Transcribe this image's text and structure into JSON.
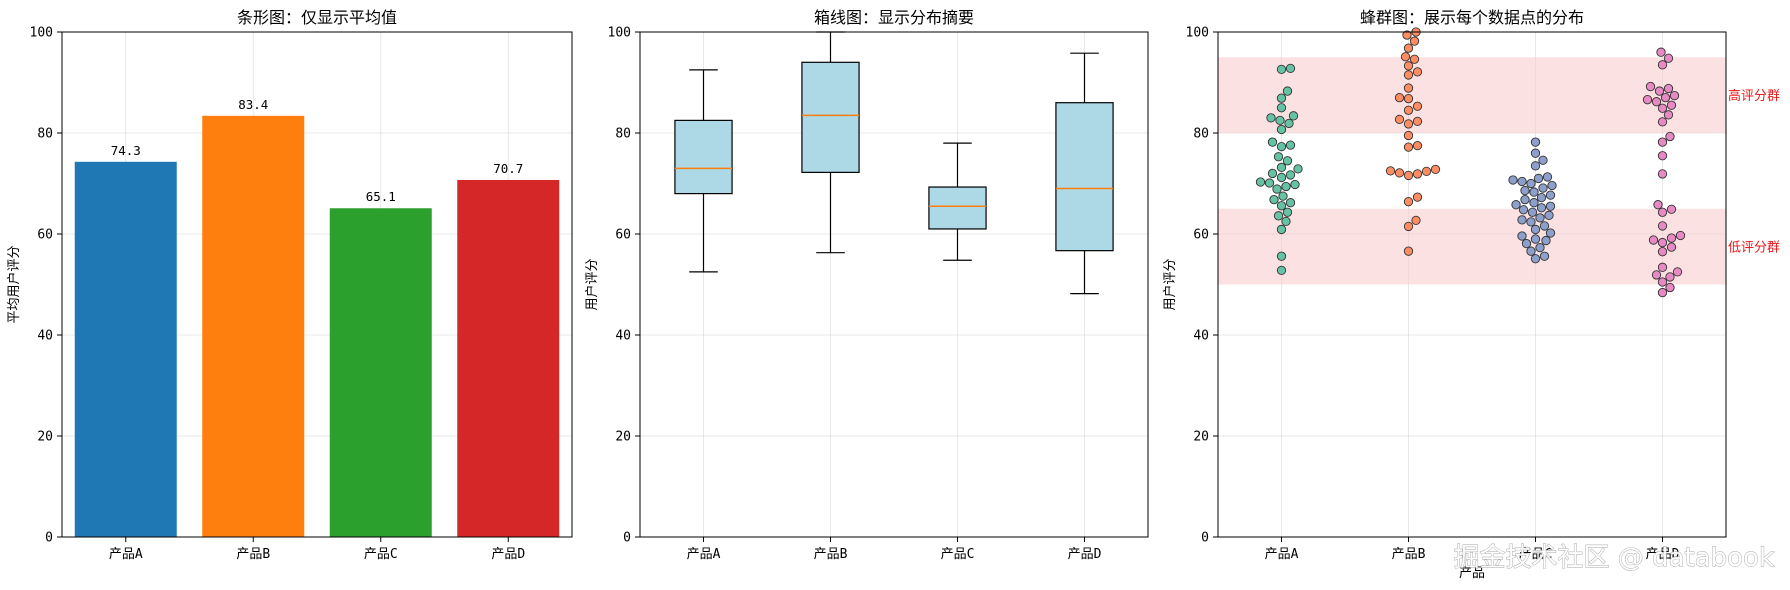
{
  "watermark": "掘金技术社区 @ databook",
  "chart_data": [
    {
      "type": "bar",
      "title": "条形图：仅显示平均值",
      "ylabel": "平均用户评分",
      "xlabel": "",
      "ylim": [
        0,
        100
      ],
      "yticks": [
        0,
        20,
        40,
        60,
        80,
        100
      ],
      "grid": true,
      "categories": [
        "产品A",
        "产品B",
        "产品C",
        "产品D"
      ],
      "values": [
        74.3,
        83.4,
        65.1,
        70.7
      ],
      "value_labels": [
        "74.3",
        "83.4",
        "65.1",
        "70.7"
      ],
      "colors": [
        "#1f77b4",
        "#ff7f0e",
        "#2ca02c",
        "#d62728"
      ]
    },
    {
      "type": "box",
      "title": "箱线图：显示分布摘要",
      "ylabel": "用户评分",
      "xlabel": "",
      "ylim": [
        0,
        100
      ],
      "yticks": [
        0,
        20,
        40,
        60,
        80,
        100
      ],
      "grid": true,
      "categories": [
        "产品A",
        "产品B",
        "产品C",
        "产品D"
      ],
      "box_color": "#add8e6",
      "median_color": "#ff7f0e",
      "boxes": [
        {
          "whisker_low": 52.5,
          "q1": 68.0,
          "median": 73.0,
          "q3": 82.5,
          "whisker_high": 92.5
        },
        {
          "whisker_low": 56.3,
          "q1": 72.2,
          "median": 83.5,
          "q3": 94.0,
          "whisker_high": 100.0
        },
        {
          "whisker_low": 54.8,
          "q1": 61.0,
          "median": 65.5,
          "q3": 69.3,
          "whisker_high": 78.0
        },
        {
          "whisker_low": 48.2,
          "q1": 56.7,
          "median": 69.0,
          "q3": 86.0,
          "whisker_high": 95.8
        }
      ]
    },
    {
      "type": "scatter",
      "subtype": "swarm",
      "title": "蜂群图：展示每个数据点的分布",
      "ylabel": "用户评分",
      "xlabel": "产品",
      "ylim": [
        0,
        100
      ],
      "yticks": [
        0,
        20,
        40,
        60,
        80,
        100
      ],
      "grid": true,
      "categories": [
        "产品A",
        "产品B",
        "产品C",
        "产品D"
      ],
      "colors": [
        "#66c2a5",
        "#fc8d62",
        "#8da0cb",
        "#e78ac3"
      ],
      "bands": [
        {
          "label": "高评分群",
          "y0": 80,
          "y1": 95,
          "color": "#f8c8c8"
        },
        {
          "label": "低评分群",
          "y0": 50,
          "y1": 65,
          "color": "#f8c8c8"
        }
      ],
      "series": [
        {
          "values": [
            92.8,
            92.6,
            88.3,
            86.9,
            85.0,
            83.4,
            83.0,
            82.5,
            81.9,
            80.7,
            78.2,
            77.6,
            77.3,
            75.3,
            74.5,
            73.2,
            72.9,
            72.0,
            71.7,
            71.2,
            70.3,
            70.1,
            69.8,
            69.4,
            68.9,
            67.5,
            66.8,
            66.2,
            65.6,
            64.3,
            63.6,
            62.5,
            60.9,
            55.6,
            52.8
          ]
        },
        {
          "values": [
            100.0,
            99.4,
            98.2,
            96.8,
            95.1,
            94.6,
            93.3,
            92.1,
            91.5,
            88.9,
            87.0,
            86.8,
            85.3,
            84.5,
            82.7,
            82.3,
            81.8,
            79.5,
            77.5,
            77.2,
            72.8,
            72.5,
            72.4,
            72.1,
            71.9,
            71.6,
            67.3,
            66.4,
            62.7,
            61.5,
            56.6
          ]
        },
        {
          "values": [
            78.2,
            76.0,
            74.6,
            73.5,
            71.3,
            71.0,
            70.7,
            70.4,
            70.0,
            69.6,
            69.1,
            68.6,
            68.3,
            67.7,
            67.2,
            66.8,
            66.2,
            65.8,
            65.5,
            65.2,
            64.8,
            64.3,
            63.7,
            63.2,
            62.8,
            62.4,
            61.6,
            60.9,
            60.2,
            59.6,
            59.0,
            58.7,
            58.1,
            57.3,
            56.6,
            55.6,
            55.1
          ]
        },
        {
          "values": [
            96.0,
            94.8,
            93.5,
            89.2,
            88.8,
            88.3,
            87.4,
            87.0,
            86.6,
            86.2,
            85.5,
            84.9,
            83.6,
            82.2,
            79.3,
            78.2,
            75.5,
            71.9,
            65.8,
            64.9,
            64.3,
            61.6,
            59.7,
            59.2,
            58.8,
            58.3,
            57.4,
            56.5,
            53.4,
            52.5,
            51.9,
            51.5,
            50.5,
            49.4,
            48.4
          ]
        }
      ]
    }
  ]
}
